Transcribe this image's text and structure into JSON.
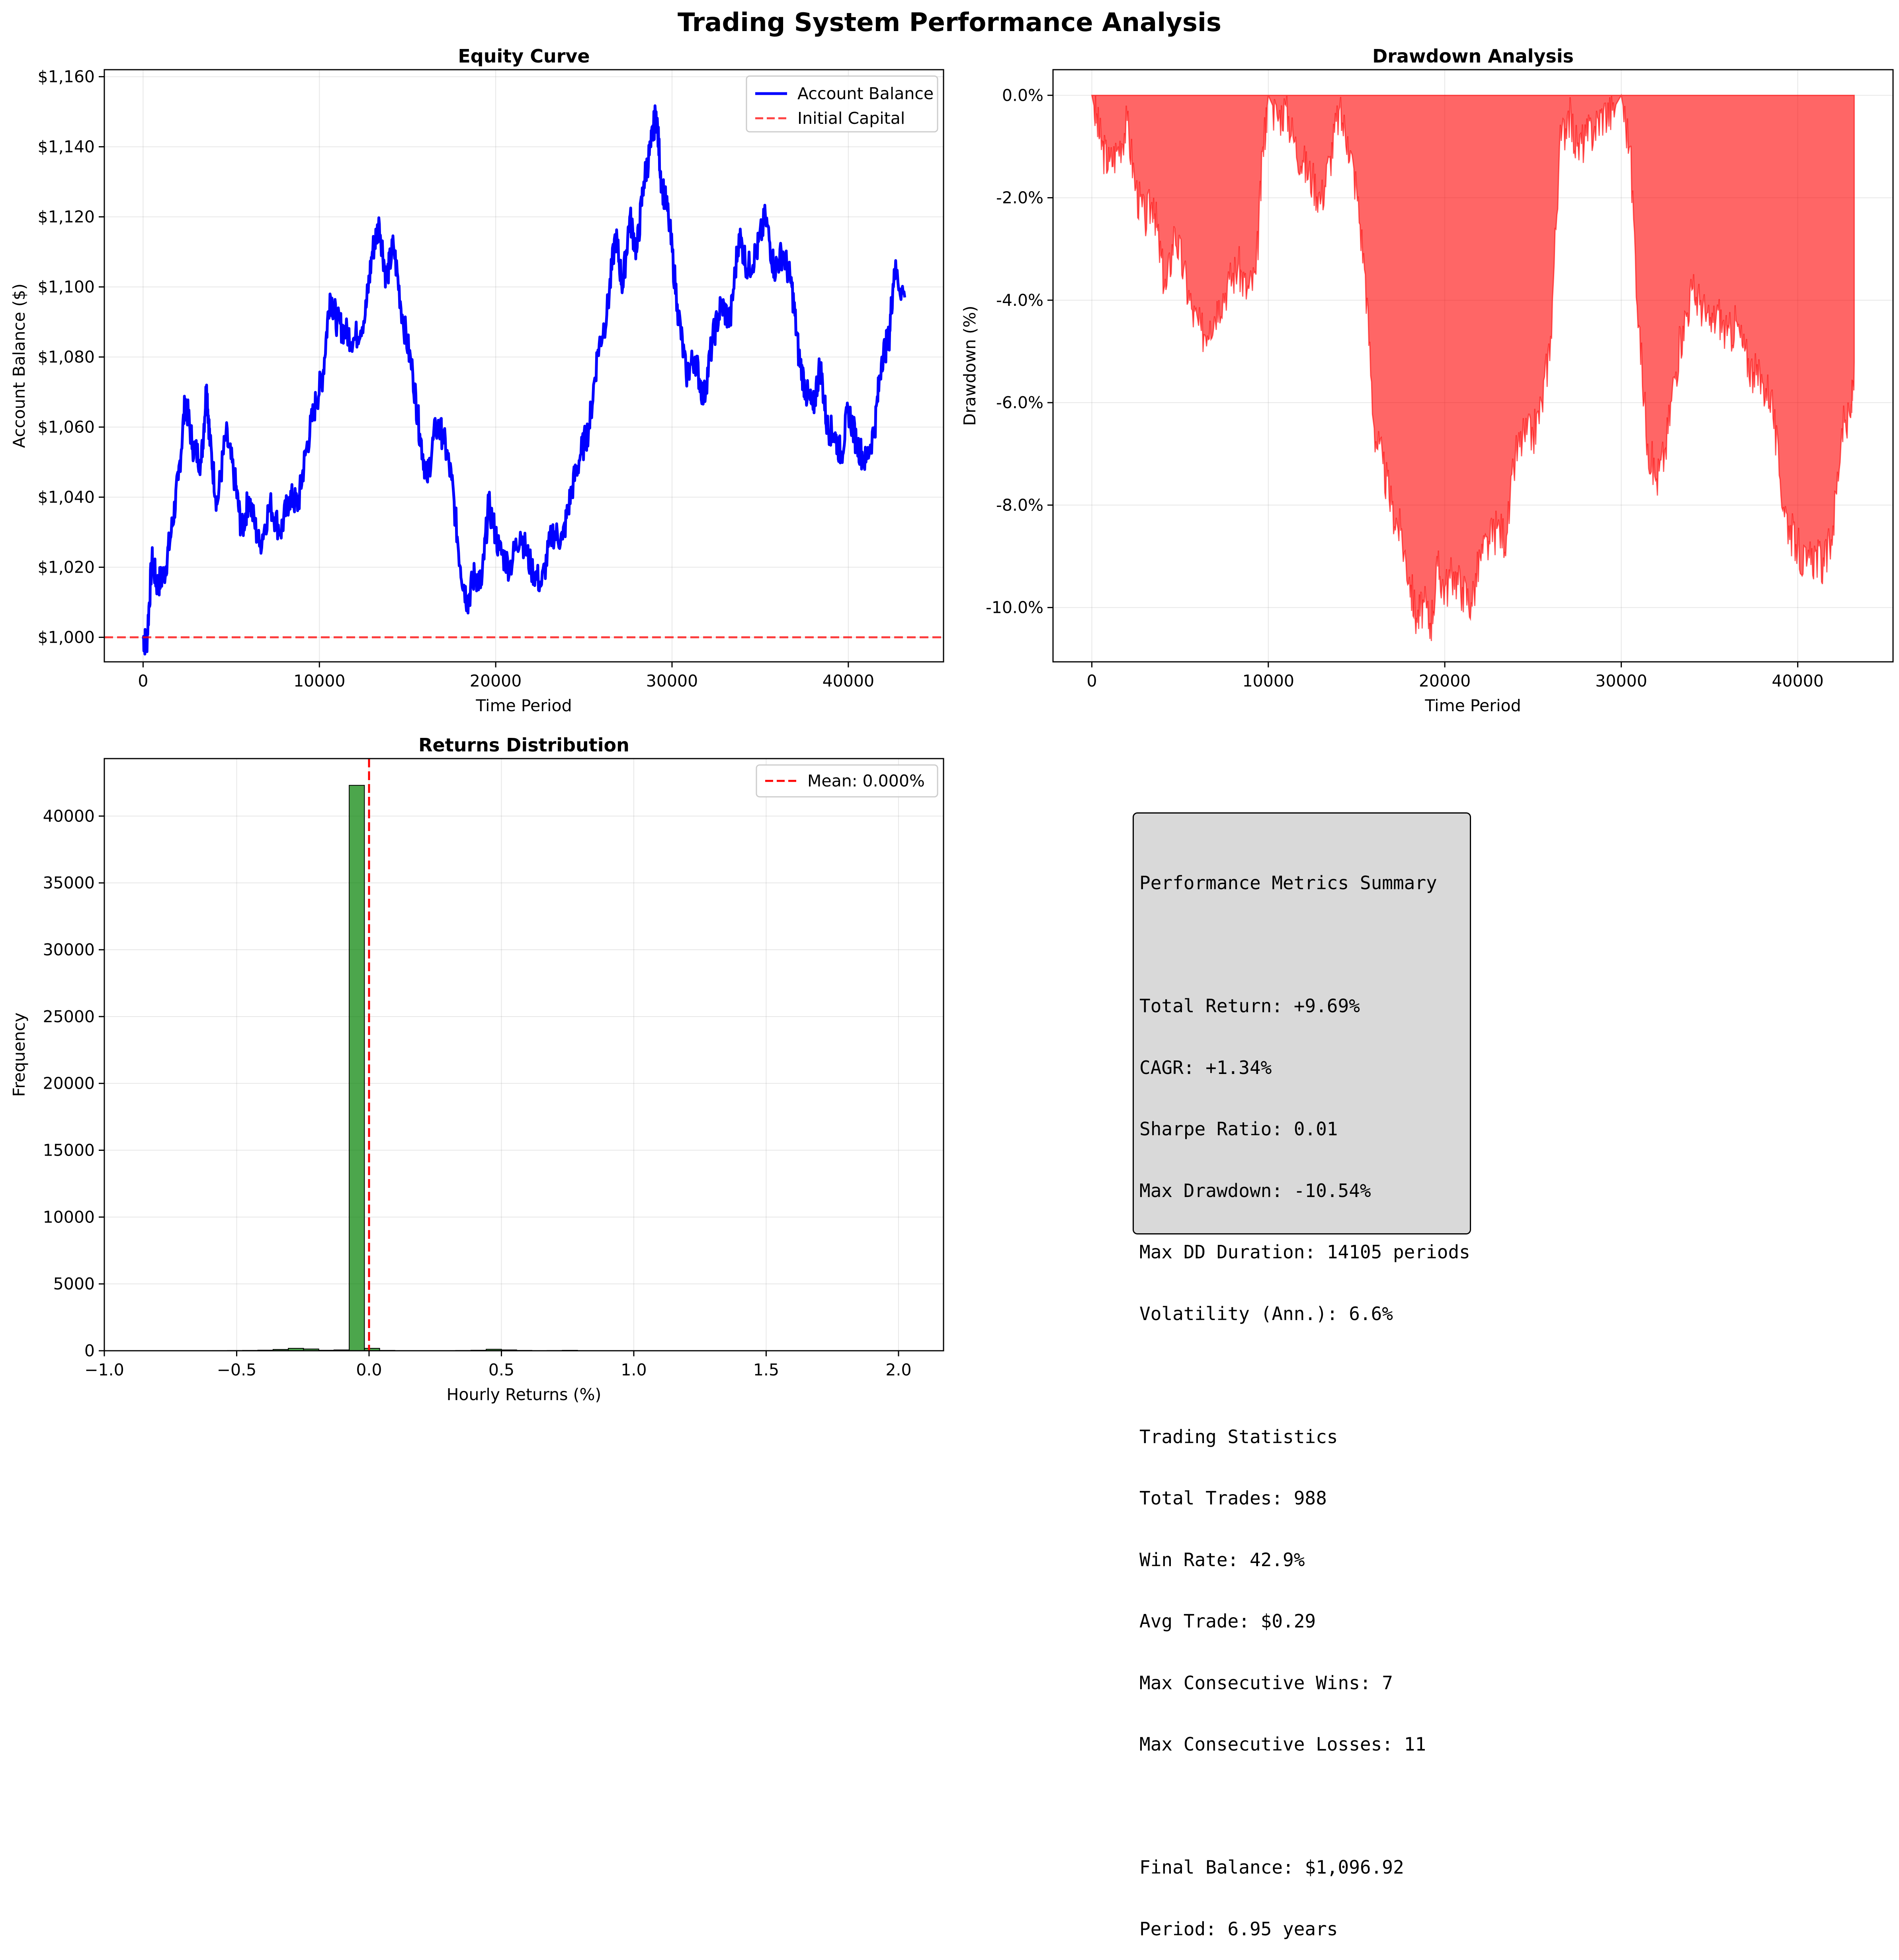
{
  "figure_title": "Trading System Performance Analysis",
  "colors": {
    "equity_line": "#0000ff",
    "initial_capital_line": "#ff0000",
    "drawdown_fill": "#ff0000",
    "histogram_bars": "#008000",
    "mean_line": "#ff0000",
    "metrics_box_bg": "#d9d9d9"
  },
  "chart_data": [
    {
      "id": "equity",
      "type": "line",
      "title": "Equity Curve",
      "xlabel": "Time Period",
      "ylabel": "Account Balance ($)",
      "xlim": [
        -2200,
        45400
      ],
      "ylim": [
        993,
        1162
      ],
      "xticks": [
        0,
        10000,
        20000,
        30000,
        40000
      ],
      "xtick_labels": [
        "0",
        "10000",
        "20000",
        "30000",
        "40000"
      ],
      "yticks": [
        1000,
        1020,
        1040,
        1060,
        1080,
        1100,
        1120,
        1140,
        1160
      ],
      "ytick_labels": [
        "$1,000",
        "$1,020",
        "$1,040",
        "$1,060",
        "$1,080",
        "$1,100",
        "$1,120",
        "$1,140",
        "$1,160"
      ],
      "grid": true,
      "legend_position": "top-right",
      "series": [
        {
          "name": "Account Balance",
          "style": "solid",
          "x": [
            0,
            200,
            500,
            800,
            1200,
            1600,
            2000,
            2400,
            2800,
            3300,
            3600,
            3800,
            4200,
            4700,
            5200,
            5600,
            6000,
            6600,
            7200,
            7800,
            8300,
            8800,
            9200,
            9700,
            10200,
            10600,
            11000,
            11500,
            12000,
            12600,
            13000,
            13400,
            13800,
            14200,
            14700,
            15300,
            15700,
            16100,
            16600,
            17000,
            17500,
            18000,
            18400,
            18800,
            19200,
            19600,
            20200,
            20800,
            21400,
            22000,
            22600,
            23200,
            23800,
            24300,
            24800,
            25300,
            25800,
            26300,
            26800,
            27200,
            27600,
            28000,
            28400,
            28800,
            29100,
            29400,
            29800,
            30300,
            30800,
            31300,
            31800,
            32300,
            32800,
            33300,
            33800,
            34300,
            34800,
            35300,
            35800,
            36300,
            36800,
            37200,
            37600,
            38000,
            38400,
            38800,
            39200,
            39600,
            40000,
            40500,
            41000,
            41500,
            41900,
            42300,
            42600,
            43200
          ],
          "y": [
            1000,
            998,
            1022,
            1015,
            1018,
            1030,
            1045,
            1068,
            1055,
            1050,
            1072,
            1055,
            1038,
            1058,
            1045,
            1030,
            1040,
            1026,
            1038,
            1030,
            1040,
            1038,
            1052,
            1065,
            1075,
            1098,
            1090,
            1087,
            1085,
            1092,
            1110,
            1118,
            1102,
            1112,
            1092,
            1075,
            1058,
            1045,
            1060,
            1058,
            1045,
            1020,
            1010,
            1018,
            1015,
            1038,
            1025,
            1020,
            1030,
            1020,
            1015,
            1030,
            1028,
            1042,
            1052,
            1060,
            1082,
            1092,
            1115,
            1100,
            1120,
            1110,
            1130,
            1140,
            1150,
            1130,
            1120,
            1095,
            1075,
            1080,
            1068,
            1085,
            1095,
            1090,
            1115,
            1105,
            1110,
            1120,
            1105,
            1110,
            1100,
            1080,
            1070,
            1065,
            1078,
            1060,
            1058,
            1052,
            1065,
            1055,
            1050,
            1060,
            1080,
            1085,
            1105,
            1097
          ]
        },
        {
          "name": "Initial Capital",
          "style": "dashed",
          "x": [
            -2200,
            45400
          ],
          "y": [
            1000,
            1000
          ]
        }
      ]
    },
    {
      "id": "drawdown",
      "type": "area",
      "title": "Drawdown Analysis",
      "xlabel": "Time Period",
      "ylabel": "Drawdown (%)",
      "xlim": [
        -2200,
        45400
      ],
      "ylim": [
        -11.06,
        0.5
      ],
      "xticks": [
        0,
        10000,
        20000,
        30000,
        40000
      ],
      "xtick_labels": [
        "0",
        "10000",
        "20000",
        "30000",
        "40000"
      ],
      "yticks": [
        0,
        -2,
        -4,
        -6,
        -8,
        -10
      ],
      "ytick_labels": [
        "0.0%",
        "-2.0%",
        "-4.0%",
        "-6.0%",
        "-8.0%",
        "-10.0%"
      ],
      "grid": true,
      "series": [
        {
          "x": [
            0,
            300,
            600,
            1000,
            1500,
            2000,
            2500,
            3000,
            3500,
            3800,
            4200,
            4700,
            5200,
            5700,
            6200,
            6700,
            7200,
            7800,
            8300,
            8800,
            9300,
            9700,
            10000,
            10500,
            11000,
            11500,
            12000,
            12500,
            13000,
            13500,
            14000,
            14500,
            15000,
            15500,
            16000,
            16500,
            17000,
            17500,
            18000,
            18400,
            18800,
            19200,
            19600,
            20000,
            20500,
            21000,
            21500,
            22000,
            22500,
            23000,
            23500,
            24000,
            24500,
            25000,
            25500,
            26000,
            26500,
            27000,
            27500,
            28000,
            28500,
            29000,
            29500,
            30000,
            30500,
            31000,
            31500,
            32000,
            32500,
            33000,
            33500,
            34000,
            34500,
            35000,
            35500,
            36000,
            36500,
            37000,
            37500,
            38000,
            38500,
            39000,
            39500,
            40000,
            40500,
            41000,
            41500,
            42000,
            42500,
            43000,
            43200
          ],
          "y": [
            0,
            -0.5,
            -1.0,
            -1.3,
            -1.0,
            -0.5,
            -1.8,
            -2.4,
            -2.0,
            -2.9,
            -3.8,
            -2.6,
            -3.4,
            -4.2,
            -4.6,
            -4.4,
            -4.0,
            -3.6,
            -3.3,
            -3.8,
            -3.5,
            -1.0,
            0,
            -0.4,
            -0.2,
            -0.9,
            -1.3,
            -1.6,
            -2.0,
            -1.2,
            -0.3,
            -0.8,
            -1.8,
            -3.5,
            -6.5,
            -7.2,
            -8.0,
            -8.5,
            -9.4,
            -10.2,
            -9.9,
            -10.3,
            -9.2,
            -9.6,
            -9.3,
            -9.6,
            -9.9,
            -9.0,
            -8.7,
            -8.4,
            -8.6,
            -7.0,
            -6.6,
            -6.6,
            -6.0,
            -4.7,
            -1.0,
            -0.3,
            -1.0,
            -0.8,
            -0.6,
            -0.3,
            -0.3,
            0,
            -1.0,
            -4.5,
            -6.8,
            -7.5,
            -6.9,
            -5.5,
            -4.5,
            -3.8,
            -4.0,
            -4.5,
            -4.2,
            -4.7,
            -4.4,
            -5.0,
            -5.4,
            -5.6,
            -5.8,
            -7.5,
            -8.4,
            -8.8,
            -9.2,
            -8.9,
            -9.2,
            -8.4,
            -6.5,
            -6.3,
            -5.2
          ]
        }
      ]
    },
    {
      "id": "returns",
      "type": "bar",
      "title": "Returns Distribution",
      "xlabel": "Hourly Returns (%)",
      "ylabel": "Frequency",
      "xlim": [
        -1.0,
        2.17
      ],
      "ylim": [
        0,
        44300
      ],
      "xticks": [
        -1.0,
        -0.5,
        0.0,
        0.5,
        1.0,
        1.5,
        2.0
      ],
      "xtick_labels": [
        "−1.0",
        "−0.5",
        "0.0",
        "0.5",
        "1.0",
        "1.5",
        "2.0"
      ],
      "yticks": [
        0,
        5000,
        10000,
        15000,
        20000,
        25000,
        30000,
        35000,
        40000
      ],
      "ytick_labels": [
        "0",
        "5000",
        "10000",
        "15000",
        "20000",
        "25000",
        "30000",
        "35000",
        "40000"
      ],
      "grid": true,
      "legend_position": "top-right",
      "bin_width": 0.0575,
      "bin_starts": [
        -0.88,
        -0.8225,
        -0.765,
        -0.7075,
        -0.65,
        -0.5925,
        -0.535,
        -0.4775,
        -0.42,
        -0.3625,
        -0.305,
        -0.2475,
        -0.19,
        -0.1325,
        -0.075,
        -0.0175,
        0.04,
        0.0975,
        0.155,
        0.2125,
        0.27,
        0.3275,
        0.385,
        0.4425,
        0.5,
        0.5575,
        0.615,
        0.6725,
        0.73,
        0.7875,
        0.845,
        0.9025,
        0.96,
        1.0175,
        1.075,
        1.1325,
        1.19,
        1.2475,
        1.305,
        1.3625,
        1.42,
        1.4775,
        1.535,
        1.5925,
        1.65,
        1.7075,
        1.765,
        1.8225,
        1.88,
        1.9375,
        1.995
      ],
      "counts": [
        8,
        3,
        6,
        2,
        5,
        15,
        18,
        25,
        40,
        95,
        180,
        130,
        35,
        60,
        42300,
        180,
        25,
        15,
        10,
        8,
        12,
        20,
        35,
        110,
        60,
        25,
        12,
        18,
        30,
        12,
        8,
        10,
        6,
        4,
        5,
        3,
        4,
        2,
        3,
        2,
        2,
        1,
        2,
        1,
        1,
        1,
        2,
        1,
        1,
        1,
        3
      ],
      "mean": 0.0,
      "mean_label": "Mean: 0.000%"
    }
  ],
  "legends": {
    "equity": [
      "Account Balance",
      "Initial Capital"
    ],
    "returns": [
      "Mean: 0.000%"
    ]
  },
  "metrics_lines": [
    "Performance Metrics Summary",
    "",
    "Total Return: +9.69%",
    "CAGR: +1.34%",
    "Sharpe Ratio: 0.01",
    "Max Drawdown: -10.54%",
    "Max DD Duration: 14105 periods",
    "Volatility (Ann.): 6.6%",
    "",
    "Trading Statistics",
    "Total Trades: 988",
    "Win Rate: 42.9%",
    "Avg Trade: $0.29",
    "Max Consecutive Wins: 7",
    "Max Consecutive Losses: 11",
    "",
    "Final Balance: $1,096.92",
    "Period: 6.95 years"
  ]
}
